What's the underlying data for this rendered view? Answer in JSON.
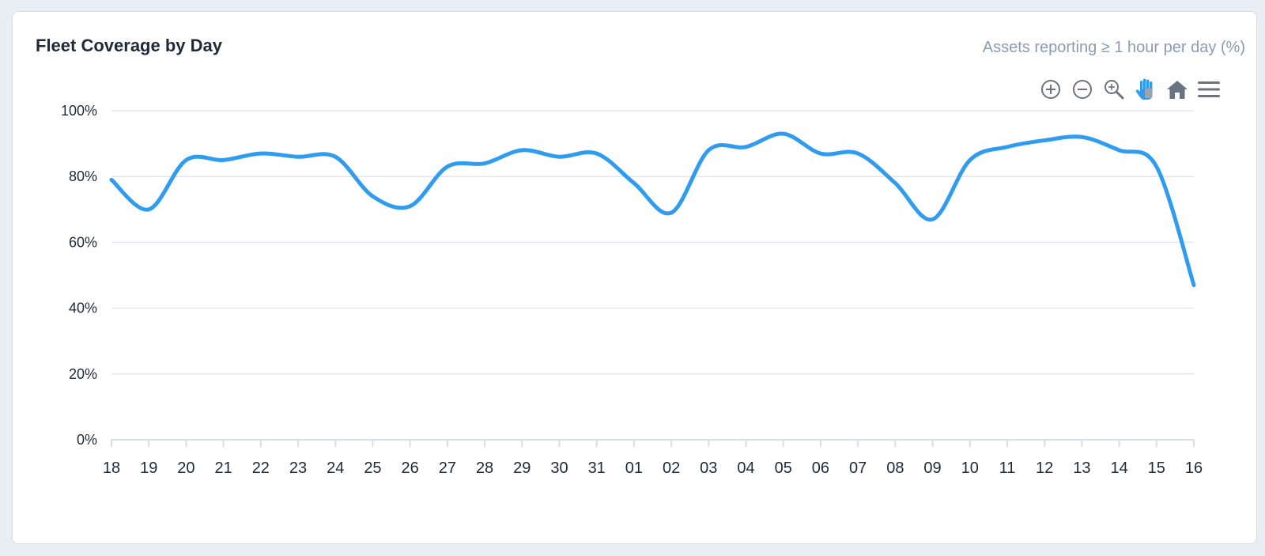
{
  "header": {
    "title": "Fleet Coverage by Day",
    "subtitle": "Assets reporting ≥ 1 hour per day (%)"
  },
  "toolbar": {
    "tools": [
      {
        "name": "zoom-in-icon",
        "glyph": "zoom-in"
      },
      {
        "name": "zoom-out-icon",
        "glyph": "zoom-out"
      },
      {
        "name": "selection-zoom-icon",
        "glyph": "magnifier"
      },
      {
        "name": "pan-hand-icon",
        "glyph": "hand",
        "active": true
      },
      {
        "name": "reset-home-icon",
        "glyph": "home"
      },
      {
        "name": "menu-icon",
        "glyph": "hamburger"
      }
    ],
    "icon_color": "#6b7280",
    "active_color": "#2f9cf0"
  },
  "chart_data": {
    "type": "line",
    "title": "Fleet Coverage by Day",
    "subtitle": "Assets reporting ≥ 1 hour per day (%)",
    "xlabel": "",
    "ylabel": "",
    "categories": [
      "18",
      "19",
      "20",
      "21",
      "22",
      "23",
      "24",
      "25",
      "26",
      "27",
      "28",
      "29",
      "30",
      "31",
      "01",
      "02",
      "03",
      "04",
      "05",
      "06",
      "07",
      "08",
      "09",
      "10",
      "11",
      "12",
      "13",
      "14",
      "15",
      "16"
    ],
    "series": [
      {
        "values": [
          79,
          70,
          85,
          85,
          87,
          86,
          86,
          74,
          71,
          83,
          84,
          88,
          86,
          87,
          78,
          69,
          88,
          89,
          93,
          87,
          87,
          78,
          67,
          85,
          89,
          91,
          92,
          88,
          83,
          47
        ],
        "color": "#2f9cf0"
      }
    ],
    "ylim": [
      0,
      100
    ],
    "yticks": [
      0,
      20,
      40,
      60,
      80,
      100
    ],
    "ytick_format": "%",
    "grid": true,
    "legend": "none"
  }
}
